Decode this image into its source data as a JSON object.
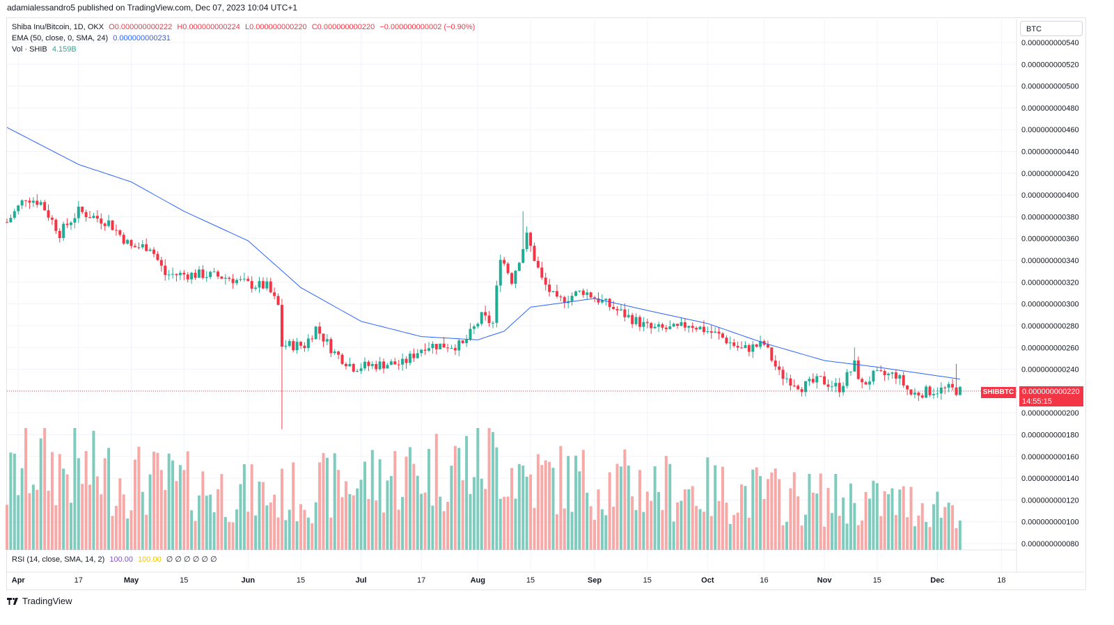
{
  "header": {
    "published": "adamialessandro5 published on TradingView.com, Dec 07, 2023 10:04 UTC+1"
  },
  "legend": {
    "symbol": "Shiba Inu/Bitcoin, 1D, OKX",
    "o": "O0.000000000222",
    "h": "H0.000000000224",
    "l": "L0.000000000220",
    "c": "C0.000000000220",
    "chg": "−0.000000000002 (−0.90%)",
    "ema_label": "EMA (50, close, 0, SMA, 24)",
    "ema_value": "0.000000000231",
    "vol_label": "Vol · SHIB",
    "vol_value": "4.159B",
    "rsi_label": "RSI (14, close, SMA, 14, 2)",
    "rsi_v1": "100.00",
    "rsi_v2": "100.00",
    "rsi_rest": "∅ ∅ ∅ ∅ ∅ ∅"
  },
  "currency_button": "BTC",
  "price_tag": {
    "symbol": "SHIBBTC",
    "price": "0.000000000220",
    "countdown": "14:55:15"
  },
  "footer": {
    "brand": "TradingView",
    "logo_icon": "tradingview-logo-icon"
  },
  "colors": {
    "up": "#22ab94",
    "down": "#f23645",
    "ema": "#2962ff",
    "vol_up": "#7fcbbd",
    "vol_down": "#f7a9a7",
    "grid": "#f0f3fa"
  },
  "chart_data": {
    "type": "candlestick",
    "symbol": "SHIBBTC",
    "interval": "1D",
    "y_unit_note": "price in BTC",
    "yticks": [
      8e-11,
      1e-10,
      1.2e-10,
      1.4e-10,
      1.6e-10,
      1.8e-10,
      2e-10,
      2.2e-10,
      2.4e-10,
      2.6e-10,
      2.8e-10,
      3e-10,
      3.2e-10,
      3.4e-10,
      3.6e-10,
      3.8e-10,
      4e-10,
      4.2e-10,
      4.4e-10,
      4.6e-10,
      4.8e-10,
      5e-10,
      5.2e-10,
      5.4e-10
    ],
    "ytick_labels": [
      "0.000000000080",
      "0.000000000100",
      "0.000000000120",
      "0.000000000140",
      "0.000000000160",
      "0.000000000180",
      "0.000000000200",
      "0.000000000220",
      "0.000000000240",
      "0.000000000260",
      "0.000000000280",
      "0.000000000300",
      "0.000000000320",
      "0.000000000340",
      "0.000000000360",
      "0.000000000380",
      "0.000000000400",
      "0.000000000420",
      "0.000000000440",
      "0.000000000460",
      "0.000000000480",
      "0.000000000500",
      "0.000000000520",
      "0.000000000540"
    ],
    "xticks": [
      {
        "date": "2023-04-01",
        "label": "Apr"
      },
      {
        "date": "2023-04-17",
        "label": "17"
      },
      {
        "date": "2023-05-01",
        "label": "May"
      },
      {
        "date": "2023-05-15",
        "label": "15"
      },
      {
        "date": "2023-06-01",
        "label": "Jun"
      },
      {
        "date": "2023-06-15",
        "label": "15"
      },
      {
        "date": "2023-07-01",
        "label": "Jul"
      },
      {
        "date": "2023-07-17",
        "label": "17"
      },
      {
        "date": "2023-08-01",
        "label": "Aug"
      },
      {
        "date": "2023-08-15",
        "label": "15"
      },
      {
        "date": "2023-09-01",
        "label": "Sep"
      },
      {
        "date": "2023-09-15",
        "label": "15"
      },
      {
        "date": "2023-10-01",
        "label": "Oct"
      },
      {
        "date": "2023-10-16",
        "label": "16"
      },
      {
        "date": "2023-11-01",
        "label": "Nov"
      },
      {
        "date": "2023-11-15",
        "label": "15"
      },
      {
        "date": "2023-12-01",
        "label": "Dec"
      },
      {
        "date": "2023-12-18",
        "label": "18"
      }
    ],
    "x_range": [
      "2023-03-29",
      "2023-12-22"
    ],
    "price_key_points": [
      {
        "date": "2023-03-29",
        "close": 3.75e-10
      },
      {
        "date": "2023-04-03",
        "close": 3.98e-10
      },
      {
        "date": "2023-04-07",
        "close": 3.93e-10
      },
      {
        "date": "2023-04-12",
        "close": 3.65e-10
      },
      {
        "date": "2023-04-17",
        "close": 3.85e-10
      },
      {
        "date": "2023-04-25",
        "close": 3.75e-10
      },
      {
        "date": "2023-05-01",
        "close": 3.52e-10
      },
      {
        "date": "2023-05-06",
        "close": 3.53e-10
      },
      {
        "date": "2023-05-10",
        "close": 3.27e-10
      },
      {
        "date": "2023-05-20",
        "close": 3.27e-10
      },
      {
        "date": "2023-05-27",
        "close": 3.24e-10
      },
      {
        "date": "2023-06-01",
        "close": 3.18e-10
      },
      {
        "date": "2023-06-06",
        "close": 3.16e-10
      },
      {
        "date": "2023-06-09",
        "close": 2.98e-10
      },
      {
        "date": "2023-06-10",
        "close": 2.62e-10
      },
      {
        "date": "2023-06-16",
        "close": 2.62e-10
      },
      {
        "date": "2023-06-19",
        "close": 2.78e-10
      },
      {
        "date": "2023-06-24",
        "close": 2.55e-10
      },
      {
        "date": "2023-06-29",
        "close": 2.42e-10
      },
      {
        "date": "2023-07-08",
        "close": 2.45e-10
      },
      {
        "date": "2023-07-12",
        "close": 2.45e-10
      },
      {
        "date": "2023-07-18",
        "close": 2.62e-10
      },
      {
        "date": "2023-07-28",
        "close": 2.62e-10
      },
      {
        "date": "2023-08-02",
        "close": 2.88e-10
      },
      {
        "date": "2023-08-05",
        "close": 2.82e-10
      },
      {
        "date": "2023-08-07",
        "close": 3.45e-10
      },
      {
        "date": "2023-08-10",
        "close": 3.22e-10
      },
      {
        "date": "2023-08-14",
        "close": 3.62e-10
      },
      {
        "date": "2023-08-18",
        "close": 3.22e-10
      },
      {
        "date": "2023-08-22",
        "close": 3.02e-10
      },
      {
        "date": "2023-08-29",
        "close": 3.12e-10
      },
      {
        "date": "2023-09-06",
        "close": 2.96e-10
      },
      {
        "date": "2023-09-10",
        "close": 2.88e-10
      },
      {
        "date": "2023-09-16",
        "close": 2.77e-10
      },
      {
        "date": "2023-09-23",
        "close": 2.77e-10
      },
      {
        "date": "2023-09-26",
        "close": 2.82e-10
      },
      {
        "date": "2023-10-04",
        "close": 2.71e-10
      },
      {
        "date": "2023-10-10",
        "close": 2.58e-10
      },
      {
        "date": "2023-10-16",
        "close": 2.63e-10
      },
      {
        "date": "2023-10-20",
        "close": 2.36e-10
      },
      {
        "date": "2023-10-26",
        "close": 2.24e-10
      },
      {
        "date": "2023-10-31",
        "close": 2.3e-10
      },
      {
        "date": "2023-11-05",
        "close": 2.23e-10
      },
      {
        "date": "2023-11-09",
        "close": 2.44e-10
      },
      {
        "date": "2023-11-11",
        "close": 2.25e-10
      },
      {
        "date": "2023-11-14",
        "close": 2.34e-10
      },
      {
        "date": "2023-11-20",
        "close": 2.35e-10
      },
      {
        "date": "2023-11-24",
        "close": 2.17e-10
      },
      {
        "date": "2023-11-29",
        "close": 2.2e-10
      },
      {
        "date": "2023-12-04",
        "close": 2.22e-10
      },
      {
        "date": "2023-12-07",
        "close": 2.2e-10
      }
    ],
    "wick_extremes": [
      {
        "date": "2023-06-10",
        "low": 1.85e-10
      },
      {
        "date": "2023-08-13",
        "high": 3.85e-10
      },
      {
        "date": "2023-11-09",
        "high": 2.6e-10
      },
      {
        "date": "2023-12-06",
        "high": 2.45e-10
      }
    ],
    "ema_key_points": [
      {
        "date": "2023-03-29",
        "value": 4.62e-10
      },
      {
        "date": "2023-04-17",
        "value": 4.28e-10
      },
      {
        "date": "2023-05-01",
        "value": 4.12e-10
      },
      {
        "date": "2023-05-15",
        "value": 3.85e-10
      },
      {
        "date": "2023-06-01",
        "value": 3.58e-10
      },
      {
        "date": "2023-06-15",
        "value": 3.15e-10
      },
      {
        "date": "2023-07-01",
        "value": 2.84e-10
      },
      {
        "date": "2023-07-17",
        "value": 2.7e-10
      },
      {
        "date": "2023-08-01",
        "value": 2.67e-10
      },
      {
        "date": "2023-08-08",
        "value": 2.75e-10
      },
      {
        "date": "2023-08-15",
        "value": 2.97e-10
      },
      {
        "date": "2023-09-01",
        "value": 3.05e-10
      },
      {
        "date": "2023-09-15",
        "value": 2.94e-10
      },
      {
        "date": "2023-10-01",
        "value": 2.82e-10
      },
      {
        "date": "2023-10-16",
        "value": 2.64e-10
      },
      {
        "date": "2023-11-01",
        "value": 2.48e-10
      },
      {
        "date": "2023-11-15",
        "value": 2.42e-10
      },
      {
        "date": "2023-12-01",
        "value": 2.34e-10
      },
      {
        "date": "2023-12-07",
        "value": 2.31e-10
      }
    ],
    "volume_key_points": [
      {
        "date": "2023-03-29",
        "volume": 13,
        "note": "relative height only, axis not labeled"
      },
      {
        "date": "2023-04-03",
        "volume": 18
      },
      {
        "date": "2023-05-05",
        "volume": 14
      },
      {
        "date": "2023-06-08",
        "volume": 11
      },
      {
        "date": "2023-08-06",
        "volume": 19
      },
      {
        "date": "2023-08-14",
        "volume": 15
      },
      {
        "date": "2023-11-09",
        "volume": 10
      },
      {
        "date": "2023-12-06",
        "volume": 9
      }
    ],
    "last_price_line": 2.2e-10,
    "grid": true
  }
}
